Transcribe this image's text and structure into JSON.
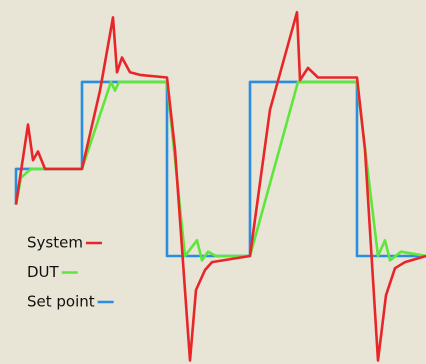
{
  "chart_data": {
    "type": "line",
    "xlim": [
      -1.6,
      41
    ],
    "ylim": [
      -1.24,
      2.94
    ],
    "legend": "left",
    "series": [
      {
        "name": "System",
        "color": "#e8262a",
        "x": [
          0,
          1.2,
          1.7,
          2.2,
          2.9,
          6.6,
          8.4,
          9.7,
          10.1,
          10.6,
          11.4,
          12.4,
          15.1,
          15.9,
          17.4,
          18,
          18.9,
          19.6,
          23.4,
          25.4,
          28.1,
          28.4,
          29.2,
          30.2,
          34.1,
          34.9,
          36.2,
          37,
          37.9,
          38.9,
          41
        ],
        "values": [
          0.59,
          1.51,
          1.1,
          1.2,
          1,
          1,
          1.9,
          2.74,
          2.11,
          2.28,
          2.11,
          2.08,
          2.05,
          1.22,
          -1.2,
          -0.39,
          -0.16,
          -0.07,
          0,
          1.68,
          2.8,
          2.02,
          2.16,
          2.05,
          2.05,
          1.22,
          -1.2,
          -0.45,
          -0.14,
          -0.07,
          0
        ]
      },
      {
        "name": "DUT",
        "color": "#5ee63a",
        "x": [
          0,
          0.5,
          1.5,
          6.6,
          9.5,
          9.9,
          10.3,
          15.1,
          16.9,
          18.1,
          18.6,
          19.2,
          20,
          23.4,
          28.2,
          29,
          34.1,
          36.2,
          36.9,
          37.4,
          38.5,
          41
        ],
        "values": [
          0.59,
          0.9,
          1,
          1,
          2,
          1.9,
          2,
          2,
          0,
          0.18,
          -0.05,
          0.05,
          0,
          0,
          2,
          2,
          2,
          0,
          0.18,
          -0.05,
          0.05,
          0
        ]
      },
      {
        "name": "Set point",
        "color": "#2a8ee0",
        "x": [
          0,
          0,
          6.6,
          6.6,
          15.1,
          15.1,
          23.4,
          23.4,
          34.1,
          34.1,
          41
        ],
        "values": [
          0.59,
          1,
          1,
          2,
          2,
          0,
          0,
          2,
          2,
          0,
          0
        ]
      }
    ]
  }
}
